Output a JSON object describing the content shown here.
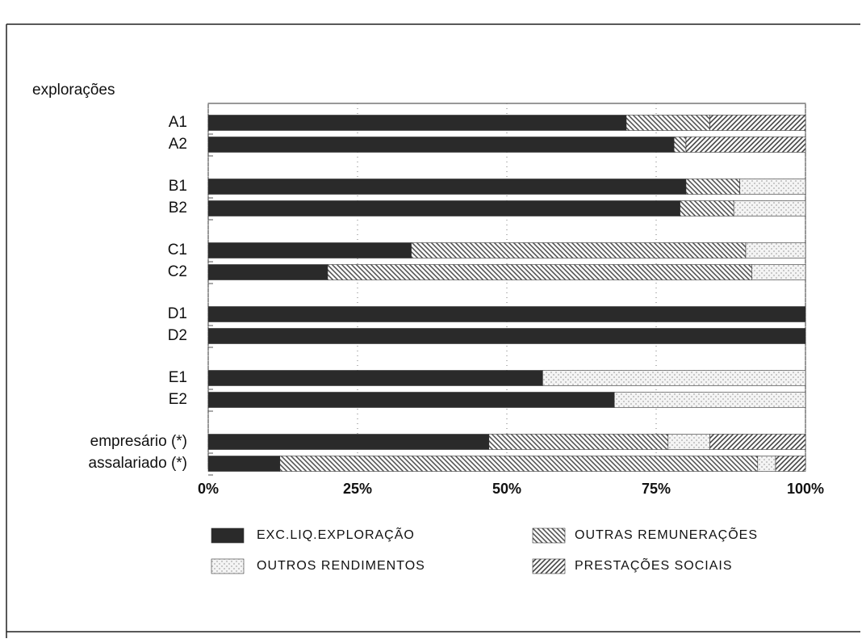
{
  "chart_data": {
    "type": "bar",
    "orientation": "horizontal",
    "stacked": true,
    "y_axis_label": "explorações",
    "categories": [
      "A1",
      "A2",
      "B1",
      "B2",
      "C1",
      "C2",
      "D1",
      "D2",
      "E1",
      "E2",
      "empresário (*)",
      "assalariado (*)"
    ],
    "series": [
      {
        "name": "EXC.LIQ.EXPLORAÇÃO",
        "color": "#2a2a2a",
        "values": [
          70,
          78,
          80,
          79,
          34,
          20,
          100,
          100,
          56,
          68,
          47,
          12
        ]
      },
      {
        "name": "OUTRAS REMUNERAÇÕES",
        "color": "#555555",
        "values": [
          14,
          2,
          9,
          9,
          56,
          71,
          0,
          0,
          0,
          0,
          30,
          80
        ]
      },
      {
        "name": "OUTROS RENDIMENTOS",
        "color": "#aaaaaa",
        "values": [
          0,
          0,
          11,
          12,
          10,
          9,
          0,
          0,
          44,
          32,
          7,
          3
        ]
      },
      {
        "name": "PRESTAÇÕES SOCIAIS",
        "color": "#444444",
        "values": [
          16,
          20,
          0,
          0,
          0,
          0,
          0,
          0,
          0,
          0,
          16,
          5
        ]
      }
    ],
    "xlim": [
      0,
      100
    ],
    "xticks": [
      {
        "value": 0,
        "label": "0%"
      },
      {
        "value": 25,
        "label": "25%"
      },
      {
        "value": 50,
        "label": "50%"
      },
      {
        "value": 75,
        "label": "75%"
      },
      {
        "value": 100,
        "label": "100%"
      }
    ],
    "grid": true
  }
}
